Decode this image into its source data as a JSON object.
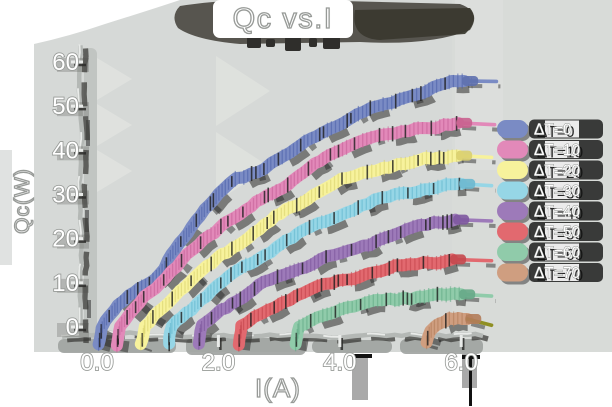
{
  "title": "Qc vs.I",
  "colors": {
    "page_background": "#ffffff",
    "plot_background": "#d6d9d7",
    "plot_background_light": "#dadcd9",
    "chevron_shadow": "#dfe1de",
    "axis_shadow_gray": "#9fa2a0",
    "shadow_dark": "#3a3a38",
    "shadow_black": "#1f1f1f",
    "text_fill": "#ffffff",
    "text_outline": "#979a97",
    "axis_line": "#b4b8b5",
    "axis_highlight": "#e9ebe9",
    "title_blob": "#57554f",
    "title_blob_dark": "#39382f",
    "legend_blob": "#161616"
  },
  "chart_data": {
    "type": "line",
    "style": "xkcd-sketch-heavy-shadow",
    "title": "Qc vs.I",
    "xlabel": "I(A)",
    "ylabel": "Qc(W)",
    "xlim": [
      -0.3,
      6.8
    ],
    "ylim": [
      -4,
      63
    ],
    "grid": false,
    "legend_position": "right",
    "x_ticks": {
      "labels": [
        "0.0",
        "2.0",
        "4.0",
        "6.0"
      ],
      "values": [
        0,
        2,
        4,
        6
      ]
    },
    "y_ticks": {
      "labels": [
        "0",
        "10",
        "20",
        "30",
        "40",
        "50",
        "60"
      ],
      "values": [
        0,
        10,
        20,
        30,
        40,
        50,
        60
      ]
    },
    "series": [
      {
        "id": "dt-0",
        "name": "ΔT=0",
        "color": "#7a8bc4",
        "tick_color": "#4a5fa8",
        "cap_color": "#5e70ae",
        "points": [
          [
            0.02,
            -3.8
          ],
          [
            0.08,
            0
          ],
          [
            0.35,
            5
          ],
          [
            0.7,
            9
          ],
          [
            1.05,
            12
          ],
          [
            1.35,
            19
          ],
          [
            1.7,
            25.5
          ],
          [
            2.0,
            30
          ],
          [
            2.3,
            33.5
          ],
          [
            2.65,
            35.5
          ],
          [
            3.0,
            38
          ],
          [
            3.35,
            41
          ],
          [
            3.7,
            44
          ],
          [
            4.05,
            46.5
          ],
          [
            4.4,
            48.5
          ],
          [
            4.75,
            50.5
          ],
          [
            5.1,
            52
          ],
          [
            5.45,
            53.5
          ],
          [
            5.75,
            55
          ],
          [
            6.05,
            55.7
          ]
        ],
        "tail": [
          6.58,
          55.6
        ]
      },
      {
        "id": "dt-10",
        "name": "ΔT=10",
        "color": "#e289b9",
        "tick_color": "#c45f96",
        "cap_color": "#c9608e",
        "points": [
          [
            0.33,
            -3.8
          ],
          [
            0.38,
            0
          ],
          [
            0.7,
            5.5
          ],
          [
            1.05,
            10
          ],
          [
            1.4,
            15
          ],
          [
            1.75,
            19.5
          ],
          [
            2.1,
            23.5
          ],
          [
            2.45,
            26.5
          ],
          [
            2.8,
            29.5
          ],
          [
            3.15,
            32.5
          ],
          [
            3.5,
            36
          ],
          [
            3.85,
            39
          ],
          [
            4.2,
            41.5
          ],
          [
            4.55,
            42.8
          ],
          [
            4.9,
            43.8
          ],
          [
            5.25,
            44.8
          ],
          [
            5.6,
            45.5
          ],
          [
            5.95,
            46.2
          ]
        ],
        "tail": [
          6.55,
          45.8
        ]
      },
      {
        "id": "dt-20",
        "name": "ΔT=20",
        "color": "#f7f29c",
        "tick_color": "#d8d06a",
        "cap_color": "#d9cf6e",
        "points": [
          [
            0.73,
            -3.8
          ],
          [
            0.78,
            0
          ],
          [
            1.1,
            4.5
          ],
          [
            1.45,
            9.5
          ],
          [
            1.8,
            13.5
          ],
          [
            2.15,
            17
          ],
          [
            2.5,
            20.5
          ],
          [
            2.85,
            24
          ],
          [
            3.2,
            27
          ],
          [
            3.55,
            30
          ],
          [
            3.9,
            32.5
          ],
          [
            4.25,
            34.2
          ],
          [
            4.6,
            35.8
          ],
          [
            4.95,
            36.8
          ],
          [
            5.3,
            37.6
          ],
          [
            5.65,
            38.3
          ],
          [
            5.95,
            38.8
          ]
        ],
        "tail": [
          6.5,
          38.4
        ]
      },
      {
        "id": "dt-30",
        "name": "ΔT=30",
        "color": "#96d6e6",
        "tick_color": "#5fb4cc",
        "cap_color": "#6db8cf",
        "points": [
          [
            1.18,
            -3.8
          ],
          [
            1.23,
            0
          ],
          [
            1.55,
            4
          ],
          [
            1.9,
            8.5
          ],
          [
            2.25,
            12
          ],
          [
            2.6,
            15
          ],
          [
            2.95,
            18
          ],
          [
            3.3,
            21
          ],
          [
            3.65,
            23.5
          ],
          [
            4.0,
            25.5
          ],
          [
            4.35,
            27.3
          ],
          [
            4.7,
            29
          ],
          [
            5.05,
            30.3
          ],
          [
            5.4,
            31.3
          ],
          [
            5.75,
            32
          ],
          [
            6.0,
            32.4
          ]
        ],
        "tail": [
          6.5,
          32.0
        ]
      },
      {
        "id": "dt-40",
        "name": "ΔT=40",
        "color": "#9d7ab9",
        "tick_color": "#7a539a",
        "cap_color": "#7e58a0",
        "points": [
          [
            1.68,
            -3.8
          ],
          [
            1.73,
            0
          ],
          [
            2.05,
            3.8
          ],
          [
            2.4,
            7
          ],
          [
            2.75,
            9.8
          ],
          [
            3.1,
            12
          ],
          [
            3.45,
            14
          ],
          [
            3.8,
            15.8
          ],
          [
            4.15,
            17
          ],
          [
            4.5,
            18.8
          ],
          [
            4.85,
            20.8
          ],
          [
            5.2,
            22.3
          ],
          [
            5.55,
            23.5
          ],
          [
            5.9,
            24.3
          ]
        ],
        "tail": [
          6.5,
          24.0
        ]
      },
      {
        "id": "dt-50",
        "name": "ΔT=50",
        "color": "#e2696f",
        "tick_color": "#c04048",
        "cap_color": "#c5484e",
        "points": [
          [
            2.33,
            -3.8
          ],
          [
            2.38,
            0
          ],
          [
            2.7,
            3
          ],
          [
            3.05,
            5.5
          ],
          [
            3.4,
            7.8
          ],
          [
            3.75,
            9.5
          ],
          [
            4.1,
            10.8
          ],
          [
            4.45,
            12
          ],
          [
            4.8,
            13.2
          ],
          [
            5.15,
            14
          ],
          [
            5.5,
            14.7
          ],
          [
            5.85,
            15.3
          ]
        ],
        "tail": [
          6.5,
          15.0
        ]
      },
      {
        "id": "dt-60",
        "name": "ΔT=60",
        "color": "#90cbaa",
        "tick_color": "#5fa983",
        "cap_color": "#66a987",
        "points": [
          [
            3.28,
            -3.8
          ],
          [
            3.33,
            0
          ],
          [
            3.65,
            2.2
          ],
          [
            4.0,
            4
          ],
          [
            4.35,
            5.2
          ],
          [
            4.7,
            6
          ],
          [
            5.05,
            6.6
          ],
          [
            5.4,
            7
          ],
          [
            5.75,
            7.3
          ],
          [
            6.0,
            7.4
          ]
        ],
        "tail": [
          6.5,
          7.0
        ]
      },
      {
        "id": "dt-70",
        "name": "ΔT=70",
        "color": "#cf9e80",
        "tick_color": "#b07a58",
        "cap_color": "#b27c5a",
        "points": [
          [
            5.42,
            -3.8
          ],
          [
            5.5,
            -1
          ],
          [
            5.65,
            0.8
          ],
          [
            5.8,
            2
          ],
          [
            5.95,
            2.5
          ],
          [
            6.1,
            1.8
          ]
        ],
        "tail": [
          6.5,
          0.4
        ],
        "tail_color": "#8f8f23"
      }
    ]
  }
}
